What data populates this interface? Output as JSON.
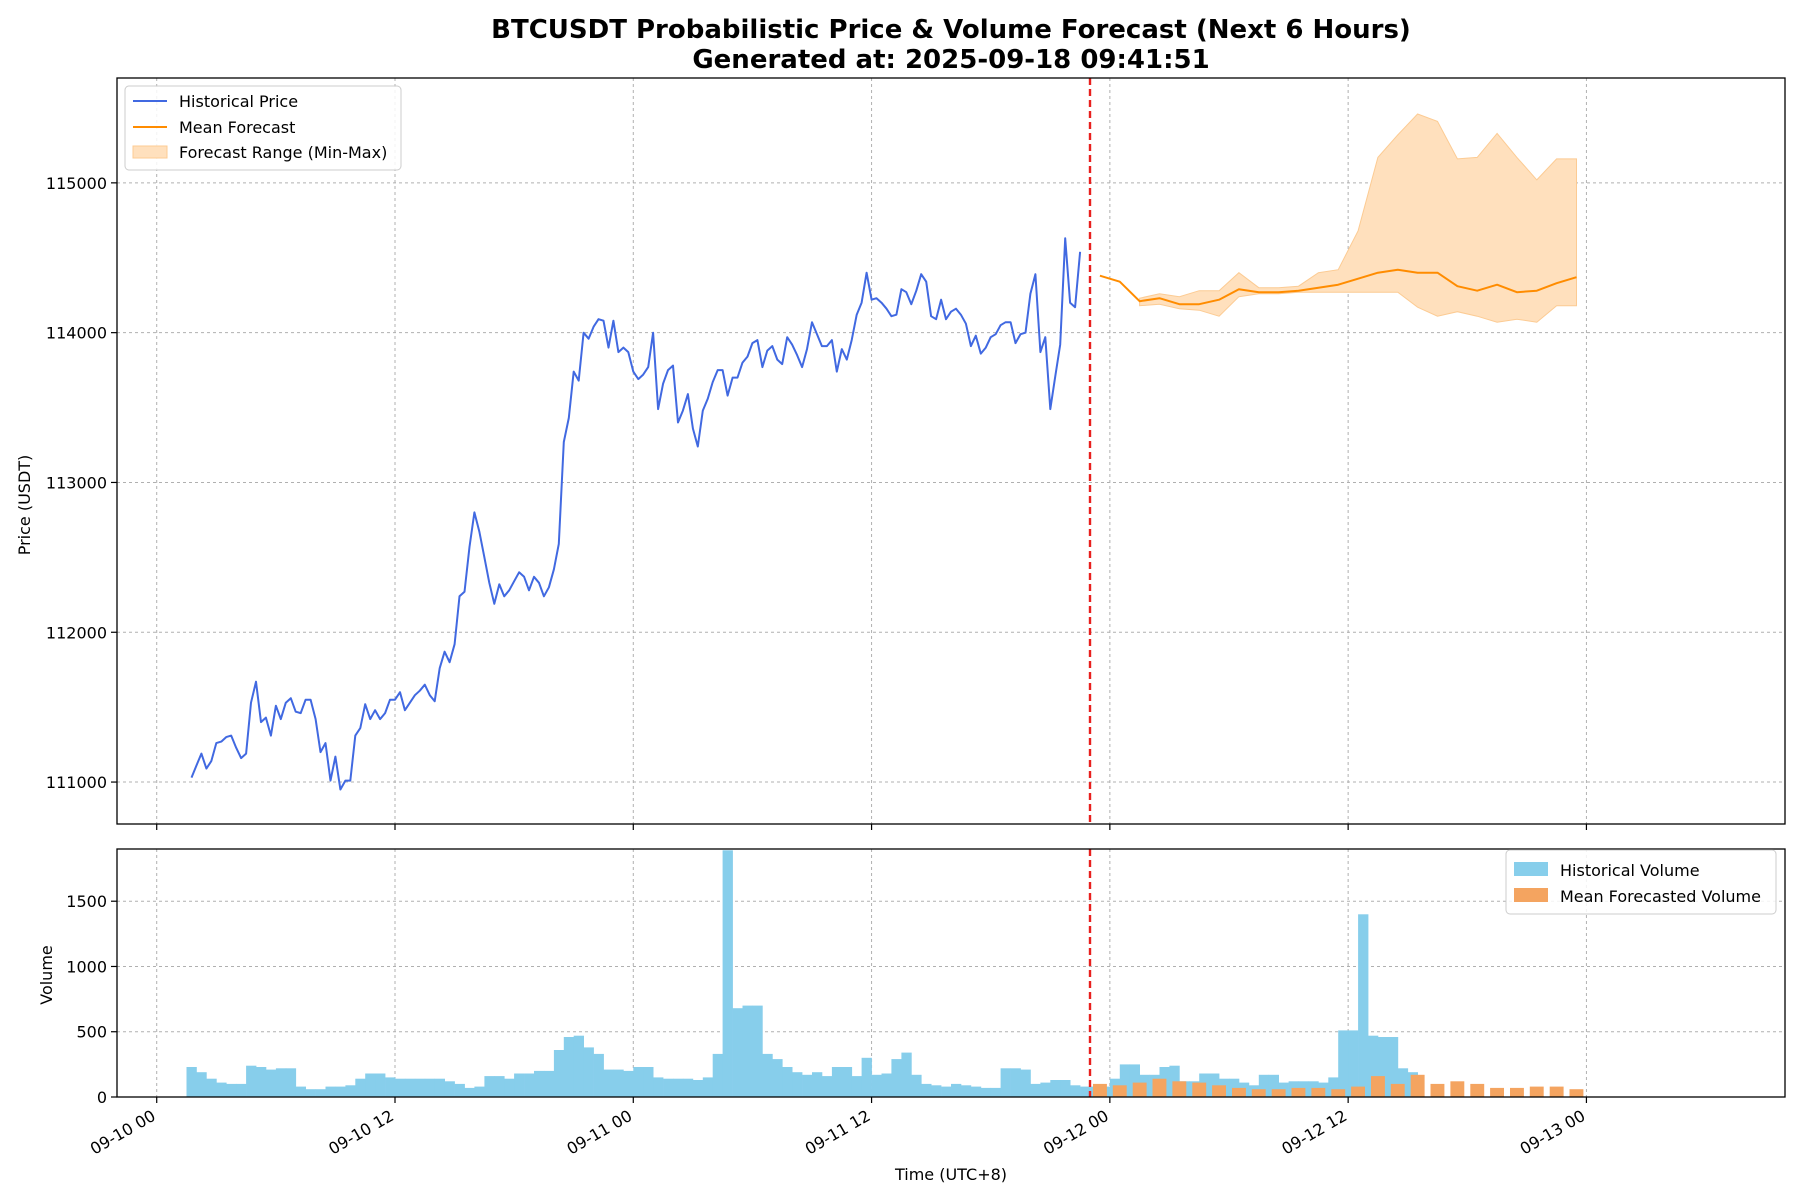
{
  "colors": {
    "price": "#4169E1",
    "forecast": "#FF8C00",
    "range": "#FFE0BD",
    "range_edge": "#FCCB93",
    "hist_volume": "#87CEEB",
    "fc_volume": "#F4A460",
    "divider": "#E8201E"
  },
  "chart_data": [
    {
      "type": "line",
      "title": "BTCUSDT Probabilistic Price & Volume Forecast (Next 6 Hours)",
      "subtitle": "Generated at: 2025-09-18 09:41:51",
      "ylabel": "Price (USDT)",
      "xlabel": "",
      "x_unit": "hours since 09-10 00:00",
      "xlim": [
        -2,
        82
      ],
      "ylim": [
        110720,
        115700
      ],
      "yticks": [
        111000,
        112000,
        113000,
        114000,
        115000
      ],
      "xticks": [
        0,
        12,
        24,
        36,
        48,
        60,
        72
      ],
      "legend": [
        "Historical Price",
        "Mean Forecast",
        "Forecast Range (Min-Max)"
      ],
      "legend_position": "upper left",
      "divider_x": 47,
      "series": [
        {
          "name": "Historical Price",
          "x_start": 1.75,
          "x_step": 0.25,
          "values": [
            111030,
            111110,
            111190,
            111090,
            111140,
            111260,
            111270,
            111300,
            111310,
            111230,
            111160,
            111190,
            111530,
            111670,
            111400,
            111430,
            111310,
            111510,
            111420,
            111530,
            111560,
            111470,
            111460,
            111550,
            111550,
            111420,
            111200,
            111260,
            111010,
            111170,
            110950,
            111010,
            111010,
            111310,
            111360,
            111520,
            111420,
            111480,
            111420,
            111460,
            111550,
            111550,
            111600,
            111480,
            111530,
            111580,
            111610,
            111650,
            111580,
            111540,
            111760,
            111870,
            111800,
            111920,
            112240,
            112270,
            112570,
            112800,
            112670,
            112500,
            112330,
            112190,
            112320,
            112240,
            112280,
            112340,
            112400,
            112370,
            112280,
            112370,
            112330,
            112240,
            112300,
            112420,
            112590,
            113270,
            113430,
            113740,
            113680,
            114000,
            113960,
            114040,
            114090,
            114080,
            113900,
            114080,
            113870,
            113900,
            113870,
            113740,
            113690,
            113720,
            113770,
            114000,
            113490,
            113660,
            113750,
            113780,
            113400,
            113480,
            113590,
            113360,
            113240,
            113480,
            113560,
            113670,
            113750,
            113750,
            113580,
            113700,
            113700,
            113800,
            113840,
            113930,
            113950,
            113770,
            113880,
            113910,
            113820,
            113790,
            113970,
            113920,
            113850,
            113770,
            113890,
            114070,
            113990,
            113910,
            113910,
            113950,
            113740,
            113890,
            113820,
            113950,
            114120,
            114200,
            114400,
            114220,
            114230,
            114200,
            114160,
            114110,
            114120,
            114290,
            114270,
            114190,
            114280,
            114390,
            114340,
            114110,
            114090,
            114220,
            114090,
            114140,
            114160,
            114120,
            114060,
            113910,
            113980,
            113860,
            113900,
            113970,
            113990,
            114050,
            114070,
            114070,
            113930,
            113990,
            114000,
            114260,
            114390,
            113870,
            113970,
            113490,
            113710,
            113920,
            114630,
            114200,
            114170,
            114540
          ]
        },
        {
          "name": "Mean Forecast",
          "x": [
            47.5,
            48.5,
            49.5,
            50.5,
            51.5,
            52.5,
            53.5,
            54.5,
            55.5,
            56.5,
            57.5,
            58.5,
            59.5,
            60.5,
            61.5,
            62.5,
            63.5,
            64.5,
            65.5,
            66.5,
            67.5,
            68.5,
            69.5,
            70.5,
            71.5
          ],
          "values": [
            114380,
            114340,
            114210,
            114230,
            114190,
            114190,
            114220,
            114290,
            114270,
            114270,
            114280,
            114300,
            114320,
            114360,
            114400,
            114420,
            114400,
            114400,
            114310,
            114280,
            114320,
            114270,
            114280,
            114330,
            114370
          ]
        },
        {
          "name": "Forecast Range (Min-Max)",
          "x": [
            49.5,
            50.5,
            51.5,
            52.5,
            53.5,
            54.5,
            55.5,
            56.5,
            57.5,
            58.5,
            59.5,
            60.5,
            61.5,
            62.5,
            63.5,
            64.5,
            65.5,
            66.5,
            67.5,
            68.5,
            69.5,
            70.5,
            71.5
          ],
          "lower": [
            114180,
            114190,
            114160,
            114150,
            114110,
            114240,
            114260,
            114260,
            114270,
            114270,
            114270,
            114270,
            114270,
            114270,
            114170,
            114110,
            114140,
            114110,
            114070,
            114090,
            114070,
            114180,
            114180
          ],
          "upper": [
            114230,
            114260,
            114240,
            114280,
            114280,
            114400,
            114300,
            114300,
            114310,
            114400,
            114420,
            114680,
            115170,
            115320,
            115460,
            115410,
            115160,
            115170,
            115330,
            115170,
            115020,
            115160,
            115160
          ]
        }
      ]
    },
    {
      "type": "bar",
      "ylabel": "Volume",
      "xlabel": "Time (UTC+8)",
      "x_unit": "hours since 09-10 00:00",
      "xlim": [
        -2,
        82
      ],
      "ylim": [
        0,
        1900
      ],
      "yticks": [
        0,
        500,
        1000,
        1500
      ],
      "xticks": [
        0,
        12,
        24,
        36,
        48,
        60,
        72
      ],
      "xticklabels": [
        "09-10 00",
        "09-10 12",
        "09-11 00",
        "09-11 12",
        "09-12 00",
        "09-12 12",
        "09-13 00"
      ],
      "legend": [
        "Historical Volume",
        "Mean Forecasted Volume"
      ],
      "legend_position": "upper right",
      "divider_x": 47,
      "series": [
        {
          "name": "Historical Volume",
          "x_start": 1.5,
          "x_step": 0.5,
          "values": [
            230,
            190,
            140,
            110,
            100,
            100,
            240,
            230,
            210,
            220,
            220,
            80,
            60,
            60,
            80,
            80,
            90,
            140,
            180,
            180,
            150,
            140,
            140,
            140,
            140,
            140,
            120,
            100,
            70,
            80,
            160,
            160,
            140,
            180,
            180,
            200,
            200,
            360,
            460,
            470,
            380,
            330,
            210,
            210,
            200,
            230,
            230,
            150,
            140,
            140,
            140,
            130,
            150,
            330,
            1890,
            680,
            700,
            700,
            330,
            290,
            230,
            190,
            170,
            190,
            160,
            230,
            230,
            160,
            300,
            170,
            180,
            290,
            340,
            170,
            100,
            90,
            80,
            100,
            90,
            80,
            70,
            70,
            220,
            220,
            210,
            100,
            110,
            130,
            130,
            90,
            80,
            80,
            80,
            140,
            250,
            250,
            170,
            170,
            230,
            240,
            120,
            120,
            180,
            180,
            140,
            140,
            110,
            90,
            170,
            170,
            110,
            120,
            120,
            120,
            110,
            150,
            510,
            510,
            1400,
            470,
            460,
            460,
            220,
            190
          ]
        },
        {
          "name": "Mean Forecasted Volume",
          "x": [
            47.5,
            48.5,
            49.5,
            50.5,
            51.5,
            52.5,
            53.5,
            54.5,
            55.5,
            56.5,
            57.5,
            58.5,
            59.5,
            60.5,
            61.5,
            62.5,
            63.5,
            64.5,
            65.5,
            66.5,
            67.5,
            68.5,
            69.5,
            70.5,
            71.5
          ],
          "values": [
            100,
            90,
            110,
            140,
            120,
            110,
            90,
            70,
            60,
            60,
            70,
            70,
            60,
            80,
            160,
            100,
            170,
            100,
            120,
            100,
            70,
            70,
            80,
            80,
            60
          ]
        }
      ]
    }
  ]
}
